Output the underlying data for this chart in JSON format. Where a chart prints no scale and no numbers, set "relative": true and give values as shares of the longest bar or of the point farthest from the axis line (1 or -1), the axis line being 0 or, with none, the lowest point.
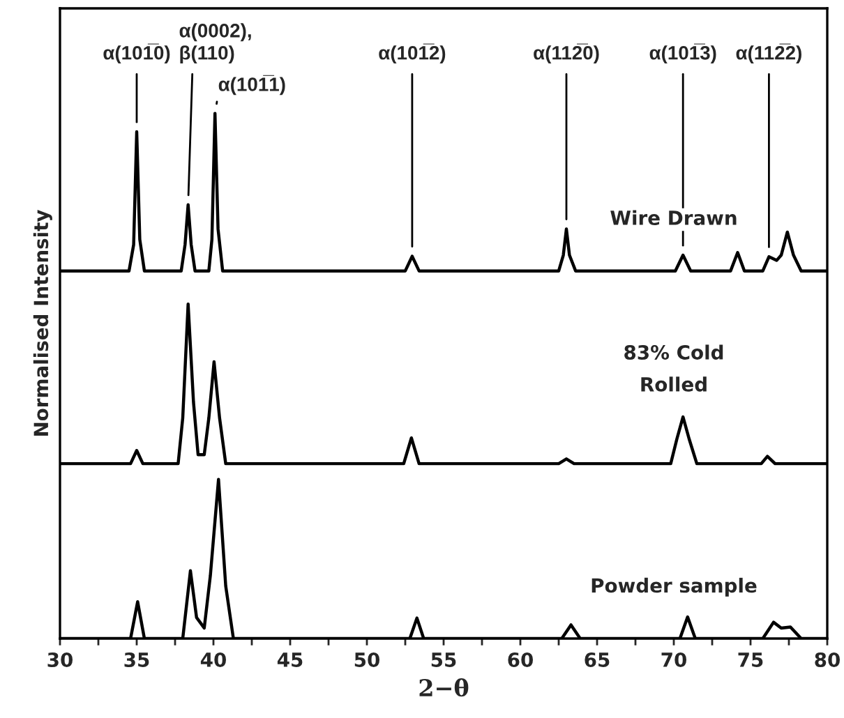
{
  "chart_data": {
    "type": "line",
    "relative": true,
    "xlabel": "2−θ",
    "ylabel": "Normalised Intensity",
    "xlim": [
      30,
      80
    ],
    "xticks": [
      30,
      {
        "value": 32.5,
        "label": null
      },
      35,
      {
        "value": 37.5,
        "label": null
      },
      40,
      {
        "value": 42.5,
        "label": null
      },
      45,
      {
        "value": 47.5,
        "label": null
      },
      50,
      {
        "value": 52.5,
        "label": null
      },
      55,
      {
        "value": 57.5,
        "label": null
      },
      60,
      {
        "value": 62.5,
        "label": null
      },
      65,
      {
        "value": 67.5,
        "label": null
      },
      70,
      {
        "value": 72.5,
        "label": null
      },
      75,
      {
        "value": 77.5,
        "label": null
      },
      80
    ],
    "grid": false,
    "legend": false,
    "series": [
      {
        "name": "Wire Drawn",
        "color": "#000000",
        "x": [
          30,
          34.5,
          34.8,
          35.0,
          35.2,
          35.5,
          37.9,
          38.15,
          38.35,
          38.55,
          38.8,
          39.7,
          39.9,
          40.1,
          40.3,
          40.6,
          52.5,
          52.95,
          53.4,
          62.5,
          62.8,
          63.0,
          63.2,
          63.6,
          70.1,
          70.6,
          71.1,
          73.7,
          74.16,
          74.6,
          75.8,
          76.2,
          76.7,
          77.0,
          77.4,
          77.8,
          78.3,
          80
        ],
        "values": [
          0.7,
          0.7,
          0.75,
          0.965,
          0.76,
          0.7,
          0.7,
          0.75,
          0.826,
          0.75,
          0.7,
          0.7,
          0.76,
          1,
          0.78,
          0.7,
          0.7,
          0.728,
          0.7,
          0.7,
          0.73,
          0.78,
          0.73,
          0.7,
          0.7,
          0.73,
          0.7,
          0.7,
          0.735,
          0.7,
          0.7,
          0.727,
          0.72,
          0.73,
          0.774,
          0.73,
          0.7,
          0.7
        ]
      },
      {
        "name": "83% Cold\nRolled",
        "color": "#000000",
        "x": [
          30,
          34.6,
          35.0,
          35.4,
          37.7,
          38.0,
          38.35,
          38.7,
          39.0,
          39.4,
          39.7,
          40.04,
          40.4,
          40.8,
          52.4,
          52.9,
          53.4,
          62.5,
          63.0,
          63.5,
          69.8,
          70.2,
          70.6,
          71.0,
          71.5,
          75.7,
          76.1,
          76.6,
          80
        ],
        "values": [
          0.333,
          0.333,
          0.358,
          0.333,
          0.333,
          0.42,
          0.637,
          0.45,
          0.35,
          0.35,
          0.42,
          0.527,
          0.42,
          0.333,
          0.333,
          0.382,
          0.333,
          0.333,
          0.342,
          0.333,
          0.333,
          0.38,
          0.422,
          0.38,
          0.333,
          0.333,
          0.347,
          0.333,
          0.333
        ]
      },
      {
        "name": "Powder sample",
        "color": "#000000",
        "x": [
          30,
          34.6,
          35.06,
          35.5,
          38.0,
          38.5,
          38.9,
          39.4,
          39.8,
          40.33,
          40.8,
          41.3,
          52.8,
          53.26,
          53.7,
          62.7,
          63.3,
          63.9,
          70.4,
          70.9,
          71.4,
          75.8,
          76.5,
          77.0,
          77.6,
          78.3,
          80
        ],
        "values": [
          0,
          0,
          0.07,
          0,
          0,
          0.129,
          0.04,
          0.02,
          0.12,
          0.303,
          0.1,
          0,
          0,
          0.039,
          0,
          0,
          0.026,
          0,
          0,
          0.041,
          0,
          0,
          0.031,
          0.02,
          0.022,
          0,
          0
        ]
      }
    ],
    "annotations": [
      {
        "text": "α(101̅0)",
        "x": 35.0,
        "y": 0.965
      },
      {
        "text": "α(0002),\nβ(110)",
        "x": 38.35,
        "y": 0.826
      },
      {
        "text": "α(101̅1)",
        "x": 40.1,
        "y": 1
      },
      {
        "text": "α(101̅2)",
        "x": 52.95,
        "y": 0.728
      },
      {
        "text": "α(112̅0)",
        "x": 63.0,
        "y": 0.78
      },
      {
        "text": "α(101̅3)",
        "x": 70.6,
        "y": 0.73
      },
      {
        "text": "α(112̅2)",
        "x": 76.2,
        "y": 0.727
      }
    ]
  }
}
